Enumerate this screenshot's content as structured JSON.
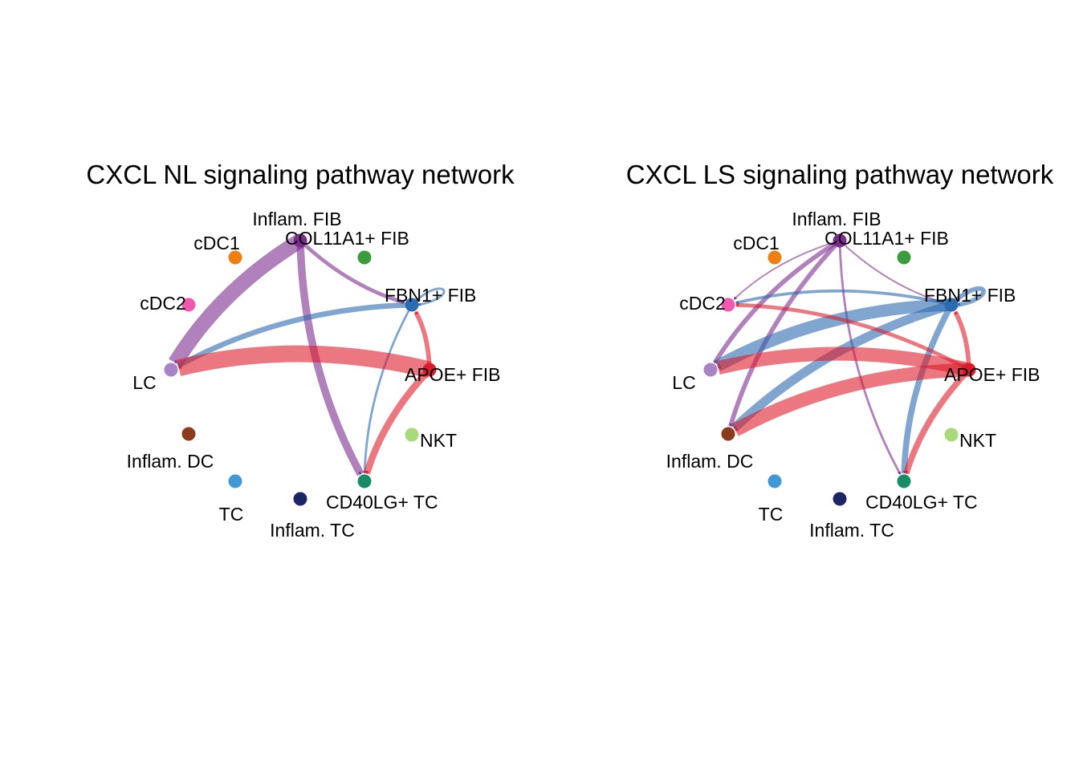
{
  "chart_data": [
    {
      "type": "network",
      "title": "CXCL NL signaling pathway network",
      "nodes": [
        {
          "id": "inflam_fib",
          "name": "Inflam. FIB",
          "color": "#7B2D8E"
        },
        {
          "id": "col11a1_fib",
          "name": "COL11A1+ FIB",
          "color": "#3C9C3C"
        },
        {
          "id": "fbn1_fib",
          "name": "FBN1+ FIB",
          "color": "#2B6BB0"
        },
        {
          "id": "apoe_fib",
          "name": "APOE+ FIB",
          "color": "#DD1C2B"
        },
        {
          "id": "nkt",
          "name": "NKT",
          "color": "#A8DA7C"
        },
        {
          "id": "cd40lg_tc",
          "name": "CD40LG+ TC",
          "color": "#1B8A66"
        },
        {
          "id": "inflam_tc",
          "name": "Inflam. TC",
          "color": "#1E2566"
        },
        {
          "id": "tc",
          "name": "TC",
          "color": "#3F99D5"
        },
        {
          "id": "inflam_dc",
          "name": "Inflam. DC",
          "color": "#8B3C1D"
        },
        {
          "id": "lc",
          "name": "LC",
          "color": "#A883C6"
        },
        {
          "id": "cdc2",
          "name": "cDC2",
          "color": "#F05AAE"
        },
        {
          "id": "cdc1",
          "name": "cDC1",
          "color": "#EE8013"
        }
      ],
      "edges": [
        {
          "source": "inflam_fib",
          "target": "lc",
          "weight": 10
        },
        {
          "source": "inflam_fib",
          "target": "cd40lg_tc",
          "weight": 5
        },
        {
          "source": "inflam_fib",
          "target": "fbn1_fib",
          "weight": 2.5
        },
        {
          "source": "fbn1_fib",
          "target": "lc",
          "weight": 3.5
        },
        {
          "source": "fbn1_fib",
          "target": "cd40lg_tc",
          "weight": 1.5
        },
        {
          "source": "fbn1_fib",
          "target": "fbn1_fib",
          "weight": 1.5
        },
        {
          "source": "apoe_fib",
          "target": "lc",
          "weight": 11
        },
        {
          "source": "apoe_fib",
          "target": "cd40lg_tc",
          "weight": 4.5
        },
        {
          "source": "apoe_fib",
          "target": "fbn1_fib",
          "weight": 3
        }
      ]
    },
    {
      "type": "network",
      "title": "CXCL LS signaling pathway network",
      "nodes": [
        {
          "id": "inflam_fib",
          "name": "Inflam. FIB",
          "color": "#7B2D8E"
        },
        {
          "id": "col11a1_fib",
          "name": "COL11A1+ FIB",
          "color": "#3C9C3C"
        },
        {
          "id": "fbn1_fib",
          "name": "FBN1+ FIB",
          "color": "#2B6BB0"
        },
        {
          "id": "apoe_fib",
          "name": "APOE+ FIB",
          "color": "#DD1C2B"
        },
        {
          "id": "nkt",
          "name": "NKT",
          "color": "#A8DA7C"
        },
        {
          "id": "cd40lg_tc",
          "name": "CD40LG+ TC",
          "color": "#1B8A66"
        },
        {
          "id": "inflam_tc",
          "name": "Inflam. TC",
          "color": "#1E2566"
        },
        {
          "id": "tc",
          "name": "TC",
          "color": "#3F99D5"
        },
        {
          "id": "inflam_dc",
          "name": "Inflam. DC",
          "color": "#8B3C1D"
        },
        {
          "id": "lc",
          "name": "LC",
          "color": "#A883C6"
        },
        {
          "id": "cdc2",
          "name": "cDC2",
          "color": "#F05AAE"
        },
        {
          "id": "cdc1",
          "name": "cDC1",
          "color": "#EE8013"
        }
      ],
      "edges": [
        {
          "source": "inflam_fib",
          "target": "cdc2",
          "weight": 1
        },
        {
          "source": "inflam_fib",
          "target": "lc",
          "weight": 3
        },
        {
          "source": "inflam_fib",
          "target": "inflam_dc",
          "weight": 3
        },
        {
          "source": "inflam_fib",
          "target": "cd40lg_tc",
          "weight": 1.5
        },
        {
          "source": "inflam_fib",
          "target": "fbn1_fib",
          "weight": 1
        },
        {
          "source": "fbn1_fib",
          "target": "cdc2",
          "weight": 2
        },
        {
          "source": "fbn1_fib",
          "target": "lc",
          "weight": 8
        },
        {
          "source": "fbn1_fib",
          "target": "inflam_dc",
          "weight": 6
        },
        {
          "source": "fbn1_fib",
          "target": "cd40lg_tc",
          "weight": 4
        },
        {
          "source": "fbn1_fib",
          "target": "fbn1_fib",
          "weight": 3
        },
        {
          "source": "apoe_fib",
          "target": "cdc2",
          "weight": 2.5
        },
        {
          "source": "apoe_fib",
          "target": "lc",
          "weight": 9
        },
        {
          "source": "apoe_fib",
          "target": "inflam_dc",
          "weight": 9
        },
        {
          "source": "apoe_fib",
          "target": "cd40lg_tc",
          "weight": 4
        },
        {
          "source": "apoe_fib",
          "target": "fbn1_fib",
          "weight": 3
        }
      ]
    }
  ]
}
